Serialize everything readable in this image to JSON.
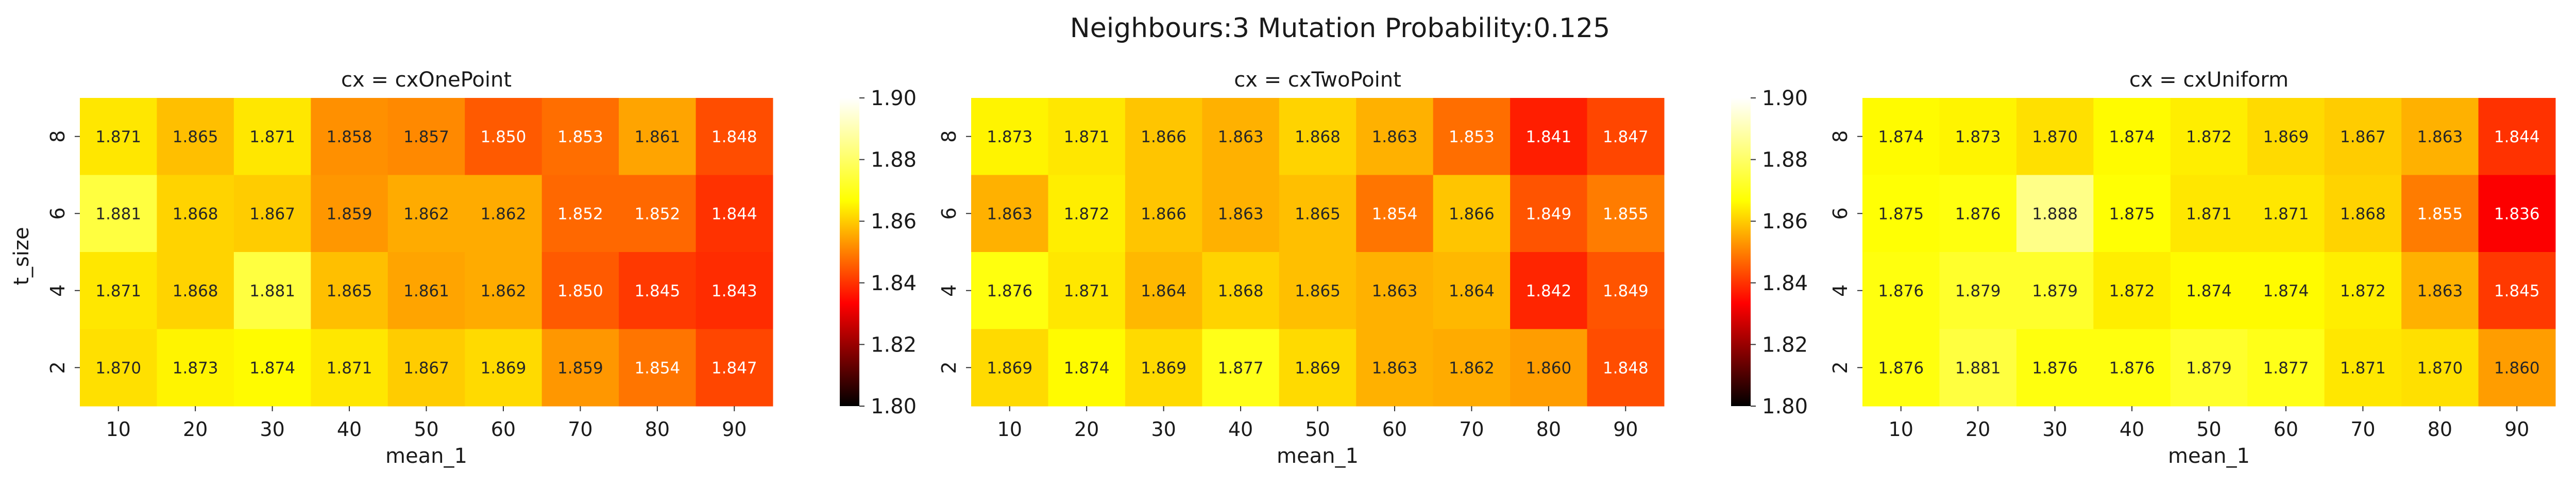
{
  "figure": {
    "title": "Neighbours:3 Mutation Probability:0.125"
  },
  "colormap": {
    "name": "hot",
    "vmin": 1.8,
    "vmax": 1.9,
    "stops": [
      "#000000",
      "#ff0000",
      "#ffff00",
      "#ffffff"
    ]
  },
  "chart_data": [
    {
      "type": "heatmap",
      "title": "cx = cxOnePoint",
      "xlabel": "mean_1",
      "ylabel": "t_size",
      "x": [
        "10",
        "20",
        "30",
        "40",
        "50",
        "60",
        "70",
        "80",
        "90"
      ],
      "y": [
        "8",
        "6",
        "4",
        "2"
      ],
      "values": [
        [
          1.871,
          1.865,
          1.871,
          1.858,
          1.857,
          1.85,
          1.853,
          1.861,
          1.848
        ],
        [
          1.881,
          1.868,
          1.867,
          1.859,
          1.862,
          1.862,
          1.852,
          1.852,
          1.844
        ],
        [
          1.871,
          1.868,
          1.881,
          1.865,
          1.861,
          1.862,
          1.85,
          1.845,
          1.843
        ],
        [
          1.87,
          1.873,
          1.874,
          1.871,
          1.867,
          1.869,
          1.859,
          1.854,
          1.847
        ]
      ],
      "colorbar_ticks": [
        "1.80",
        "1.82",
        "1.84",
        "1.86",
        "1.88",
        "1.90"
      ]
    },
    {
      "type": "heatmap",
      "title": "cx = cxTwoPoint",
      "xlabel": "mean_1",
      "ylabel": "",
      "x": [
        "10",
        "20",
        "30",
        "40",
        "50",
        "60",
        "70",
        "80",
        "90"
      ],
      "y": [
        "8",
        "6",
        "4",
        "2"
      ],
      "values": [
        [
          1.873,
          1.871,
          1.866,
          1.863,
          1.868,
          1.863,
          1.853,
          1.841,
          1.847
        ],
        [
          1.863,
          1.872,
          1.866,
          1.863,
          1.865,
          1.854,
          1.866,
          1.849,
          1.855
        ],
        [
          1.876,
          1.871,
          1.864,
          1.868,
          1.865,
          1.863,
          1.864,
          1.842,
          1.849
        ],
        [
          1.869,
          1.874,
          1.869,
          1.877,
          1.869,
          1.863,
          1.862,
          1.86,
          1.848
        ]
      ],
      "colorbar_ticks": [
        "1.80",
        "1.82",
        "1.84",
        "1.86",
        "1.88",
        "1.90"
      ]
    },
    {
      "type": "heatmap",
      "title": "cx = cxUniform",
      "xlabel": "mean_1",
      "ylabel": "",
      "x": [
        "10",
        "20",
        "30",
        "40",
        "50",
        "60",
        "70",
        "80",
        "90"
      ],
      "y": [
        "8",
        "6",
        "4",
        "2"
      ],
      "values": [
        [
          1.874,
          1.873,
          1.87,
          1.874,
          1.872,
          1.869,
          1.867,
          1.863,
          1.844
        ],
        [
          1.875,
          1.876,
          1.888,
          1.875,
          1.871,
          1.871,
          1.868,
          1.855,
          1.836
        ],
        [
          1.876,
          1.879,
          1.879,
          1.872,
          1.874,
          1.874,
          1.872,
          1.863,
          1.845
        ],
        [
          1.876,
          1.881,
          1.876,
          1.876,
          1.879,
          1.877,
          1.871,
          1.87,
          1.86
        ]
      ],
      "colorbar_ticks": [
        "1.80",
        "1.82",
        "1.84",
        "1.86",
        "1.88",
        "1.90"
      ]
    }
  ]
}
